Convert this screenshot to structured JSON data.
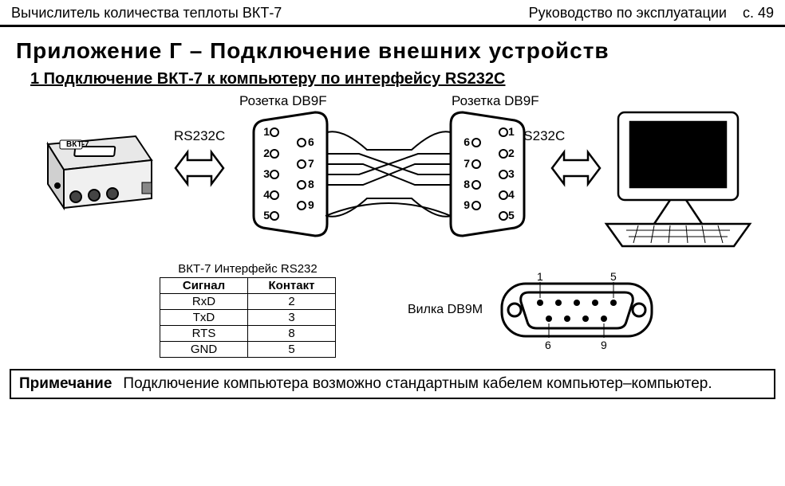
{
  "header": {
    "left": "Вычислитель количества теплоты ВКТ-7",
    "right_text": "Руководство по эксплуатации",
    "page": "с. 49"
  },
  "title": "Приложение Г – Подключение внешних устройств",
  "subtitle": "1 Подключение ВКТ-7 к компьютеру по интерфейсу RS232С",
  "diagram": {
    "socket_left": "Розетка DB9F",
    "socket_right": "Розетка DB9F",
    "bus_left": "RS232C",
    "bus_right": "RS232C",
    "device_label": "ВКТ-7",
    "left_pins": {
      "1": "1",
      "6": "6",
      "2": "2",
      "7": "7",
      "3": "3",
      "8": "8",
      "4": "4",
      "9": "9",
      "5": "5"
    },
    "right_pins": {
      "1": "1",
      "6": "6",
      "2": "2",
      "7": "7",
      "3": "3",
      "8": "8",
      "4": "4",
      "9": "9",
      "5": "5"
    },
    "colors": {
      "stroke": "#000000",
      "fill_bg": "#ffffff",
      "device_gray": "#e8e8e8",
      "device_dark": "#d0d0d0"
    }
  },
  "table": {
    "caption": "ВКТ-7 Интерфейс RS232",
    "columns": [
      "Сигнал",
      "Контакт"
    ],
    "rows": [
      [
        "RxD",
        "2"
      ],
      [
        "TxD",
        "3"
      ],
      [
        "RTS",
        "8"
      ],
      [
        "GND",
        "5"
      ]
    ]
  },
  "plug": {
    "label": "Вилка DB9M",
    "corners": {
      "tl": "1",
      "tr": "5",
      "bl": "6",
      "br": "9"
    }
  },
  "note": {
    "label": "Примечание",
    "text": "Подключение компьютера возможно стандартным кабелем компьютер–компьютер."
  }
}
